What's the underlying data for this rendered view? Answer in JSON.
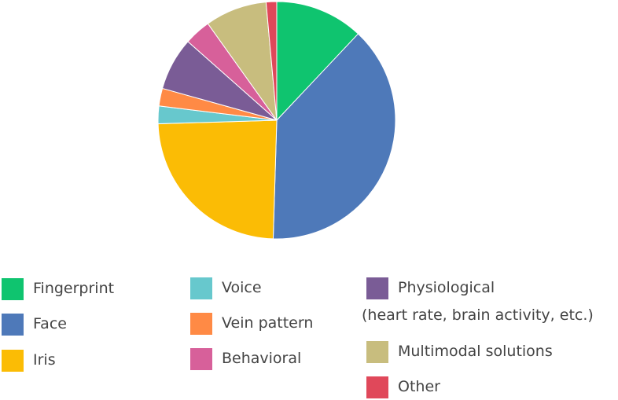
{
  "chart_data": {
    "type": "pie",
    "title": "",
    "legend_placement": "bottom",
    "slices": [
      {
        "label": "Fingerprint",
        "sublabel": "",
        "value": 12.5,
        "color": "#0fc46f"
      },
      {
        "label": "Face",
        "sublabel": "",
        "value": 40.0,
        "color": "#4e79b9"
      },
      {
        "label": "Iris",
        "sublabel": "",
        "value": 25.0,
        "color": "#fbbc05"
      },
      {
        "label": "Voice",
        "sublabel": "",
        "value": 2.5,
        "color": "#67c8cd"
      },
      {
        "label": "Vein pattern",
        "sublabel": "",
        "value": 2.5,
        "color": "#ff8a45"
      },
      {
        "label": "Physiological",
        "sublabel": "(heart rate, brain activity, etc.)",
        "value": 7.5,
        "color": "#7a5c96"
      },
      {
        "label": "Behavioral",
        "sublabel": "",
        "value": 3.75,
        "color": "#d7609a"
      },
      {
        "label": "Multimodal solutions",
        "sublabel": "",
        "value": 8.75,
        "color": "#c8bd7e"
      },
      {
        "label": "Other",
        "sublabel": "",
        "value": 1.5,
        "color": "#e0485a"
      }
    ]
  }
}
